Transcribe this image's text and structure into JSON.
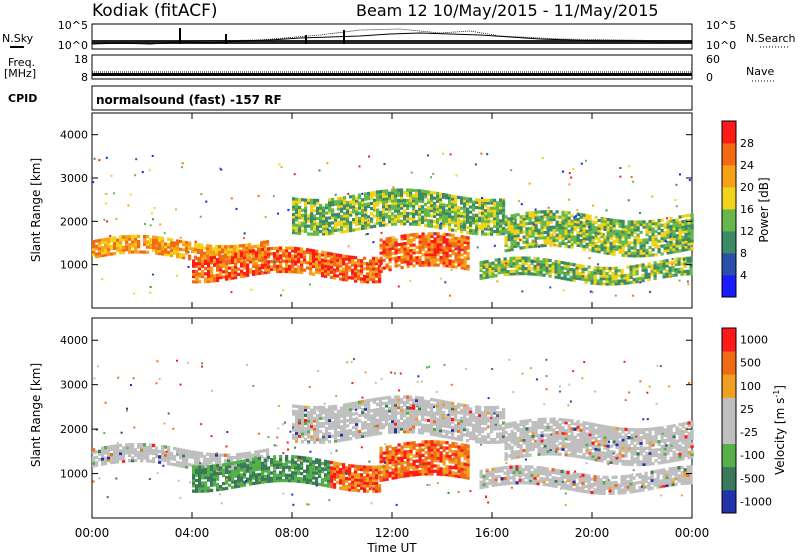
{
  "header": {
    "title": "Kodiak (fitACF)",
    "beam_info": "Beam 12 10/May/2015 - 11/May/2015"
  },
  "top_panels": {
    "nsky_label": "N.Sky",
    "nsearch_label": "N.Search",
    "nsky_ticks": [
      "10^5",
      "10^0"
    ],
    "nsearch_ticks": [
      "10^5",
      "10^0"
    ],
    "freq_label": "Freq.",
    "freq_unit": "[MHz]",
    "freq_ticks": [
      "18",
      "8"
    ],
    "nave_label": "Nave",
    "nave_ticks": [
      "60",
      "0"
    ],
    "cpid_label": "CPID",
    "cpid_value": "normalsound (fast) -157 RF"
  },
  "colors": {
    "power_scale": [
      "#1a1aff",
      "#2a4fa8",
      "#3d8a66",
      "#66b84a",
      "#f2d21a",
      "#f7a11a",
      "#f46a14",
      "#ff1a1a"
    ],
    "velocity_scale": [
      "#2233aa",
      "#3a7a5a",
      "#55b04a",
      "#bfbfbf",
      "#bfbfbf",
      "#f0a020",
      "#f06a18",
      "#ff1a1a"
    ]
  },
  "chart_data": [
    {
      "type": "heatmap",
      "name": "power",
      "ylabel": "Slant Range [km]",
      "ylim": [
        0,
        4500
      ],
      "yticks": [
        "1000",
        "2000",
        "3000",
        "4000"
      ],
      "colorbar_label": "Power [dB]",
      "colorbar_ticks": [
        "4",
        "8",
        "12",
        "16",
        "20",
        "24",
        "28"
      ],
      "bands": [
        {
          "t0": 0.0,
          "t1": 7.0,
          "r0": 1150,
          "r1": 1550,
          "level": "mid-high"
        },
        {
          "t0": 4.0,
          "t1": 11.5,
          "r0": 700,
          "r1": 1300,
          "level": "high"
        },
        {
          "t0": 11.5,
          "t1": 15.0,
          "r0": 850,
          "r1": 1600,
          "level": "high"
        },
        {
          "t0": 8.0,
          "t1": 16.5,
          "r0": 1800,
          "r1": 2600,
          "level": "mid"
        },
        {
          "t0": 16.5,
          "t1": 24.0,
          "r0": 1300,
          "r1": 2100,
          "level": "mid"
        },
        {
          "t0": 15.5,
          "t1": 24.0,
          "r0": 650,
          "r1": 1050,
          "level": "mid"
        }
      ]
    },
    {
      "type": "heatmap",
      "name": "velocity",
      "ylabel": "Slant Range [km]",
      "ylim": [
        0,
        4500
      ],
      "yticks": [
        "1000",
        "2000",
        "3000",
        "4000"
      ],
      "colorbar_label": "Velocity [m s",
      "colorbar_label_exp": "-1",
      "colorbar_ticks": [
        "1000",
        "500",
        "100",
        "25",
        "-25",
        "-100",
        "-500",
        "-1000"
      ],
      "x_ticks": [
        "00:00",
        "04:00",
        "08:00",
        "12:00",
        "16:00",
        "20:00",
        "00:00"
      ],
      "xlabel": "Time UT"
    }
  ]
}
